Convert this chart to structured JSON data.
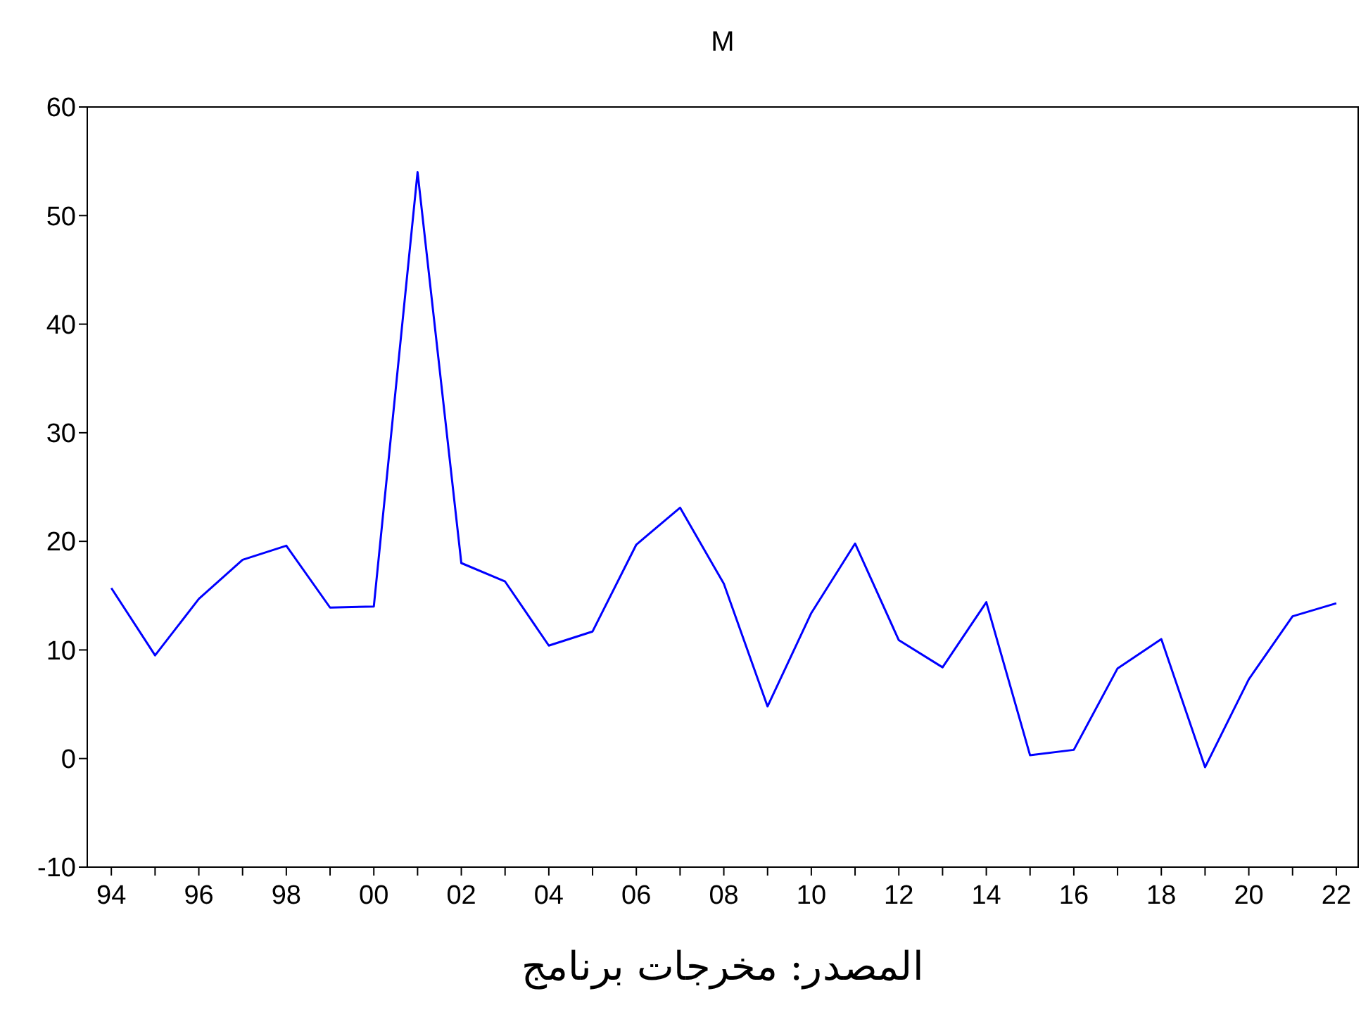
{
  "chart_data": {
    "type": "line",
    "title": "M",
    "x": [
      1994,
      1995,
      1996,
      1997,
      1998,
      1999,
      2000,
      2001,
      2002,
      2003,
      2004,
      2005,
      2006,
      2007,
      2008,
      2009,
      2010,
      2011,
      2012,
      2013,
      2014,
      2015,
      2016,
      2017,
      2018,
      2019,
      2020,
      2021,
      2022
    ],
    "series": [
      {
        "color": "#0000ff",
        "values": [
          15.7,
          9.5,
          14.7,
          18.3,
          19.6,
          13.9,
          14.0,
          54.0,
          18.0,
          16.3,
          10.4,
          11.7,
          19.7,
          23.1,
          16.1,
          4.8,
          13.4,
          19.8,
          10.9,
          8.4,
          14.4,
          0.3,
          0.8,
          8.3,
          11.0,
          -0.8,
          7.3,
          13.1,
          14.3
        ]
      }
    ],
    "xlim": [
      1993.45,
      2022.5
    ],
    "xticks": [
      {
        "value": 1994,
        "label": "94"
      },
      {
        "value": 1995,
        "label": null
      },
      {
        "value": 1996,
        "label": "96"
      },
      {
        "value": 1997,
        "label": null
      },
      {
        "value": 1998,
        "label": "98"
      },
      {
        "value": 1999,
        "label": null
      },
      {
        "value": 2000,
        "label": "00"
      },
      {
        "value": 2001,
        "label": null
      },
      {
        "value": 2002,
        "label": "02"
      },
      {
        "value": 2003,
        "label": null
      },
      {
        "value": 2004,
        "label": "04"
      },
      {
        "value": 2005,
        "label": null
      },
      {
        "value": 2006,
        "label": "06"
      },
      {
        "value": 2007,
        "label": null
      },
      {
        "value": 2008,
        "label": "08"
      },
      {
        "value": 2009,
        "label": null
      },
      {
        "value": 2010,
        "label": "10"
      },
      {
        "value": 2011,
        "label": null
      },
      {
        "value": 2012,
        "label": "12"
      },
      {
        "value": 2013,
        "label": null
      },
      {
        "value": 2014,
        "label": "14"
      },
      {
        "value": 2015,
        "label": null
      },
      {
        "value": 2016,
        "label": "16"
      },
      {
        "value": 2017,
        "label": null
      },
      {
        "value": 2018,
        "label": "18"
      },
      {
        "value": 2019,
        "label": null
      },
      {
        "value": 2020,
        "label": "20"
      },
      {
        "value": 2021,
        "label": null
      },
      {
        "value": 2022,
        "label": "22"
      }
    ],
    "ylim": [
      -10,
      60
    ],
    "yticks": [
      -10,
      0,
      10,
      20,
      30,
      40,
      50,
      60
    ],
    "marker": "none",
    "line_style": "solid",
    "annotations": [
      "المصدر: مخرجات برنامج"
    ]
  }
}
